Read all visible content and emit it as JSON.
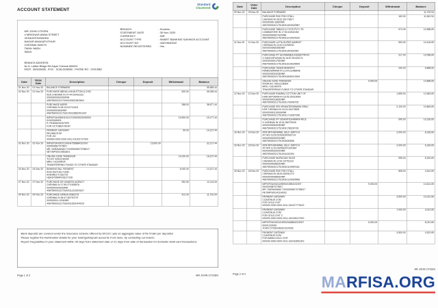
{
  "brand": {
    "line1": "Standard",
    "line2": "Chartered"
  },
  "columns": [
    "Date",
    "Value Date",
    "Description",
    "Cheque",
    "Deposit",
    "Withdrawal",
    "Balance"
  ],
  "colors": {
    "logo_blue": "#3a69ae",
    "logo_green": "#3f9a48",
    "watermark_light": "#97abd6",
    "watermark_dark": "#1d4596",
    "watermark_underline": "#e0453f"
  },
  "page1": {
    "title": "ACCOUNT STATEMENT",
    "customer_lines": [
      "MR JOHN CITIZEN",
      "4 MRIGNAR ANNA STREET",
      "VENKATESHWARA",
      "NAGAR ANAKAPUTHUR",
      "CHENNAI 600070",
      "TAMIL NADU",
      "INDIA"
    ],
    "info": [
      {
        "label": "BRANCH",
        "value": ": Sonenio"
      },
      {
        "label": "STATEMENT DATE",
        "value": ": 30 Nov 2020"
      },
      {
        "label": "CURRENCY",
        "value": ": INR"
      },
      {
        "label": "ACCOUNT TYPE",
        "value": ": SMART BANKING SAVINGS ACCOUNT"
      },
      {
        "label": "ACCOUNT NO",
        "value": ": 42819640542"
      },
      {
        "label": "NOMINEE REGISTERED",
        "value": ": Yes"
      }
    ],
    "branch_address_lines": [
      "BRANCH ADDRESS:",
      "No 6, Lattice Bridge Rd Adyar Chennai 600020",
      "MICR : 600036006 , IFSC : SCBL0036060 , PHONE NO : 24919862"
    ],
    "rows": [
      {
        "d": "01 Nov 20",
        "v": "01 Nov 20",
        "desc": [
          "BALANCE FORWARD"
        ],
        "chq": "",
        "dep": "",
        "wd": "",
        "bal": "39,655.44"
      },
      {
        "d": "02 Nov 20",
        "v": "01 Nov 20",
        "desc": [
          "PURCHASE ABDULLHA MUTTON & CHIC",
          "KEN CHENNAI    IN 07:44:03/423132",
          "00000000062000/INR",
          "4987590002217519/03080235/2804"
        ],
        "chq": "",
        "dep": "",
        "wd": "620.00",
        "bal": "39,035.44"
      },
      {
        "d": "",
        "v": "",
        "desc": [
          "PURCHASE MORE.",
          "CHENNAI    IN 08:13:02/712203",
          "000000000806/INR",
          "4987590002217519/19033852/901947"
        ],
        "chq": "",
        "dep": "",
        "wd": "358.00",
        "bal": "38,677.44"
      },
      {
        "d": "",
        "v": "",
        "desc": [
          "IMPS/P2A/03061101417/2/60330/100600X",
          "KXIO0065003",
          "R. PADMAGAYATHRI",
          "FOR OCTOBER RENT"
        ],
        "chq": "",
        "dep": "",
        "wd": "19,500.00",
        "bal": "19,177.44"
      },
      {
        "d": "",
        "v": "",
        "desc": [
          "PAYMENT GATEWAY",
          "RELIANCEJIO",
          "FOR JIO",
          "000000-0000-0260-2011-011001727900"
        ],
        "chq": "",
        "dep": "",
        "wd": "50.00",
        "bal": "19,127.44"
      },
      {
        "d": "02 Nov 20",
        "v": "02 Nov 20",
        "desc": [
          "IMPS/P2A/030721/HDA75/888402/2007",
          "0000000827075817",
          "MR. SARAVANAN 7X0000008070758017",
          "NETIMPS0010551804"
        ],
        "chq": "",
        "dep": "13,000.00",
        "wd": "",
        "bal": "32,127.44"
      },
      {
        "d": "",
        "v": "",
        "desc": [
          "ONLINE FUND TRANSFER",
          "TO A/C 42611235309",
          "MRS J SUGANYA",
          "TRANSFERRING FUNDS TO OTHER STANDAR"
        ],
        "chq": "",
        "dep": "",
        "wd": "14,020.00",
        "bal": "18,107.44"
      },
      {
        "d": "04 Nov 20",
        "v": "04 Nov 20",
        "desc": [
          "BANKING BILL PAYMENT",
          "AXIS MUTUAL FUND",
          "AXIDIRECT-G62719",
          "HQA1P0999P026277150"
        ],
        "chq": "",
        "dep": "",
        "wd": "5,000.00",
        "bal": "13,107.44"
      },
      {
        "d": "07 Nov 20",
        "v": "07 Nov 20",
        "desc": [
          "PURCHASE DR GANESH AGENCY",
          "CHENNAI    IN 17:59:27/1639576",
          "0000000000626/INR",
          "4987590002217519/03121190/0627"
        ],
        "chq": "",
        "dep": "",
        "wd": "992.50",
        "bal": "12,114.94"
      },
      {
        "d": "09 Nov 20",
        "v": "09 Nov 20",
        "desc": [
          "PURCHASE GANGA SWEETS",
          "CHENNAI    IN 08:47:35/757279",
          "000000004-1206/INR",
          "4987590002217519/03155374/4029"
        ],
        "chq": "",
        "dep": "",
        "wd": "412.00",
        "bal": "11,702.94"
      }
    ],
    "notes": [
      "Bank deposits are covered under the insurance scheme offered by DICGC upto an aggregate value of Rs 5 lakh per depositor",
      "Please register the Nomination details for your Savings/Deposit accounts if not done, by contacting our branch.",
      "Report irregularities in your statement within 30 days from statement date or 21 days from date of transaction for domestic debit card transactions"
    ],
    "footer_left": "Page 1 of 2",
    "footer_right": "MR JOHN CITIZEN"
  },
  "page2": {
    "rows": [
      {
        "d": "09 Nov 20",
        "v": "09 Nov 20",
        "desc": [
          "BALANCE FORWARD"
        ],
        "chq": "",
        "dep": "",
        "wd": "",
        "bal": "11,702.94"
      },
      {
        "d": "",
        "v": "",
        "desc": [
          "PURCHASE RKK FISH STALL",
          "CHENNAI    IN 08:51:39/778677",
          "000000000-1669/INR",
          "4987590002217519/03130300/0987"
        ],
        "chq": "",
        "dep": "",
        "wd": "160.00",
        "bal": "11,542.94"
      },
      {
        "d": "",
        "v": "",
        "desc": [
          "PURCHASE TABLEZ & TOYS PVT LTD",
          "COIMBATORE  IN 17:53:10/632282",
          "000000000067420/INR",
          "4987590002217519/03121252/5192"
        ],
        "chq": "",
        "dep": "",
        "wd": "574.25",
        "bal": "10,968.69"
      },
      {
        "d": "11 Nov 20",
        "v": "11 Nov 20",
        "desc": [
          "PURCHASE LATTA SUPER MARKET",
          "CHENNAI    IN 10:42:21/295230",
          "00000000845358/INR",
          "4987590002217519/03140302/064"
        ],
        "chq": "",
        "dep": "",
        "wd": "553.00",
        "bal": "10,415.69"
      },
      {
        "d": "",
        "v": "",
        "desc": [
          "PURCHASE PP SUYAMABULINGAM PROVI",
          "S KANCHIPURAM  IN 16:57:20/429174",
          "00000000001780/INR",
          "4987590002217519/03161063/6505"
        ],
        "chq": "",
        "dep": "",
        "wd": "317.00",
        "bal": "10,098.69"
      },
      {
        "d": "",
        "v": "",
        "desc": [
          "PURCHASE YASER ARAFATH",
          "RAMESWARAM  IN 11:04:11/488546",
          "00000000024038/INR",
          "4987590002217519/03160521/1594"
        ],
        "chq": "",
        "dep": "",
        "wd": "240.00",
        "bal": "9,858.69"
      },
      {
        "d": "",
        "v": "",
        "desc": [
          "ONLINE FUND TRANSFER",
          "FROM A/C 42611235304",
          "MRS J SUGANYA",
          "TRANSFERRING FUNDS TO OTHER STANDAR"
        ],
        "chq": "",
        "dep": "5,000.00",
        "wd": "",
        "bal": "14,858.69"
      },
      {
        "d": "12 Nov 20",
        "v": "12 Nov 20",
        "desc": [
          "PURCHASE RAMRAJ COTTON UNIT OF",
          "KANCHIPURAM  IN 18:25:25/316093",
          "00000000013806/INR",
          "4987590002217519/03170645/705"
        ],
        "chq": "",
        "dep": "",
        "wd": "1,895.00",
        "bal": "12,963.69"
      },
      {
        "d": "",
        "v": "",
        "desc": [
          "PURCHASE SRI VENKATESHWARA ORAC",
          "KER CHENNAI    IN 16:01:34/278533",
          "000000000210606/INR",
          "4987590002217519/03171305/7945"
        ],
        "chq": "",
        "dep": "",
        "wd": "2,100.00",
        "bal": "10,863.69"
      },
      {
        "d": "",
        "v": "",
        "desc": [
          "PURCHASE PP VENKATESHWARA RICE",
          "S CHENNAI    IN 19:01:08/379049",
          "00000000054938/INR",
          "4987590002217519/03178629/726"
        ],
        "chq": "",
        "dep": "",
        "wd": "545.00",
        "bal": "10,318.69"
      },
      {
        "d": "16 Nov 20",
        "v": "14 Nov 20",
        "desc": [
          "ATM WITHDRAWAL SELF-SWITCH",
          "AT NF3 16:25:52/6319/N092714",
          "00000000020000/INR",
          "4987590002217519/03630808"
        ],
        "chq": "",
        "dep": "",
        "wd": "2,000.00",
        "bal": "8,318.69"
      },
      {
        "d": "16 Nov 20",
        "v": "15 Nov 20",
        "desc": [
          "ATM WITHDRAWAL SELF-SWITCH",
          "AT NF5 11:03:30/05320/1001694",
          "00000000020000/INR",
          "4987590002217519/14432294"
        ],
        "chq": "",
        "dep": "",
        "wd": "2,000.00",
        "bal": "6,318.69"
      },
      {
        "d": "",
        "v": "",
        "desc": [
          "PURCHASE MURUGAN SILKS",
          "CHENNAI    IN 11:54:14/761312",
          "00000000008630/INR",
          "4987590002217519/03211099/9161"
        ],
        "chq": "",
        "dep": "",
        "wd": "998.00",
        "bal": "5,320.69"
      },
      {
        "d": "18 Nov 20",
        "v": "18 Nov 20",
        "desc": [
          "PURCHASE RKK FISH STALL",
          "CHENNAI    IN 08:15:16/531279",
          "00000000008806/INR",
          "4987590002217519/03212009/9966"
        ],
        "chq": "",
        "dep": "",
        "wd": "808.00",
        "bal": "4,512.69"
      },
      {
        "d": "",
        "v": "",
        "desc": [
          "IMPS/P2A/0321108900/13984/2/2007",
          "0000000807075817",
          "MR. SARAVANAN 7X0000008070758017",
          "NETIMPS00141194202"
        ],
        "chq": "",
        "dep": "9,000.00",
        "wd": "",
        "bal": "13,512.69"
      },
      {
        "d": "",
        "v": "",
        "desc": [
          "PAYMENT GATEWAY",
          "CCAVENUE.COM",
          "FOR GOLD CHIT",
          "000000-0000-0000-2011-181027775100"
        ],
        "chq": "",
        "dep": "",
        "wd": "3,500.00",
        "bal": "10,012.69"
      },
      {
        "d": "",
        "v": "",
        "desc": [
          "PAYMENT GATEWAY",
          "CCAVENUE.COM",
          "FOR GOLD CHIT 2",
          "000000-0000-0000-2011-181028127400"
        ],
        "chq": "",
        "dep": "",
        "wd": "7,000.00",
        "bal": "3,012.69"
      },
      {
        "d": "",
        "v": "",
        "desc": [
          "IMPS/P2A/0321104900/24/888422/2007",
          "60001020006",
          "JOHN CITIZEN/60201020006"
        ],
        "chq": "",
        "dep": "5,000.00",
        "wd": "",
        "bal": "8,012.69"
      },
      {
        "d": "",
        "v": "",
        "desc": [
          "PAYMENT GATEWAY",
          "CCAVENUE.COM",
          "FOR AMMA GOLD CHIT",
          "000000-0000-0000-2011-181033651300"
        ],
        "chq": "",
        "dep": "",
        "wd": "3,500.00",
        "bal": "4,512.69"
      }
    ],
    "footer_left": "Page 2 of 2",
    "footer_right": "MR JOHN CITIZEN"
  },
  "watermark": {
    "light": "MA",
    "dark": "RFISA.ORG"
  }
}
